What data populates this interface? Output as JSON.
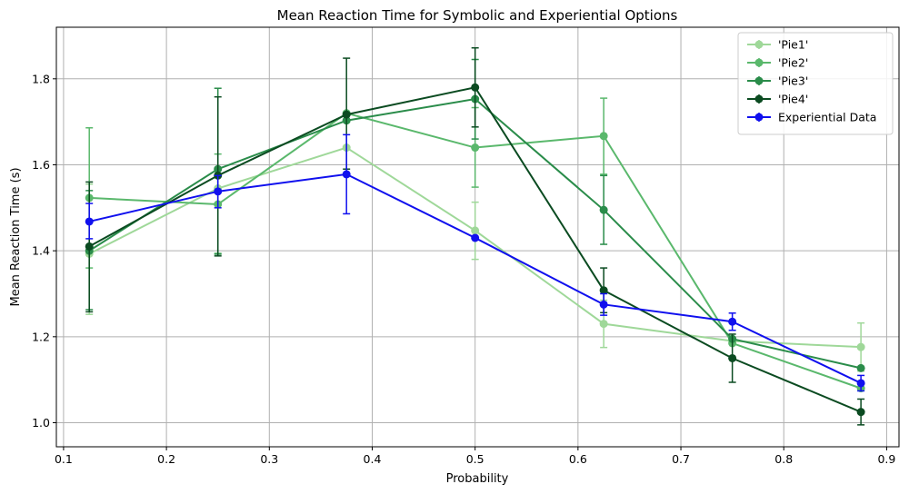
{
  "chart_data": {
    "type": "line",
    "title": "Mean Reaction Time for Symbolic and Experiential Options",
    "xlabel": "Probability",
    "ylabel": "Mean Reaction Time (s)",
    "xlim": [
      0.093,
      0.912
    ],
    "ylim": [
      0.944,
      1.92
    ],
    "xticks": [
      0.1,
      0.2,
      0.3,
      0.4,
      0.5,
      0.6,
      0.7,
      0.8,
      0.9
    ],
    "xtick_labels": [
      "0.1",
      "0.2",
      "0.3",
      "0.4",
      "0.5",
      "0.6",
      "0.7",
      "0.8",
      "0.9"
    ],
    "yticks": [
      1.0,
      1.2,
      1.4,
      1.6,
      1.8
    ],
    "ytick_labels": [
      "1.0",
      "1.2",
      "1.4",
      "1.6",
      "1.8"
    ],
    "grid": true,
    "legend_position": "top-right",
    "x": [
      0.125,
      0.25,
      0.375,
      0.5,
      0.625,
      0.75,
      0.875
    ],
    "series": [
      {
        "name": "'Pie1'",
        "color": "#9fd899",
        "values": [
          1.393,
          1.545,
          1.64,
          1.447,
          1.23,
          1.19,
          1.176
        ],
        "err_low": [
          1.252,
          null,
          null,
          1.38,
          1.175,
          null,
          1.12
        ],
        "err_high": [
          1.555,
          null,
          null,
          1.513,
          1.285,
          null,
          1.232
        ]
      },
      {
        "name": "'Pie2'",
        "color": "#5ab86c",
        "values": [
          1.523,
          1.508,
          1.72,
          1.64,
          1.667,
          1.185,
          1.08
        ],
        "err_low": [
          1.36,
          1.394,
          null,
          1.548,
          1.578,
          null,
          null
        ],
        "err_high": [
          1.686,
          1.625,
          null,
          1.733,
          1.755,
          null,
          null
        ]
      },
      {
        "name": "'Pie3'",
        "color": "#2a8c4a",
        "values": [
          1.4,
          1.59,
          1.703,
          1.753,
          1.495,
          1.195,
          1.127
        ],
        "err_low": [
          1.263,
          1.392,
          null,
          1.66,
          1.415,
          null,
          null
        ],
        "err_high": [
          1.54,
          1.778,
          null,
          1.845,
          1.575,
          null,
          null
        ]
      },
      {
        "name": "'Pie4'",
        "color": "#0b4b21",
        "values": [
          1.41,
          1.575,
          1.717,
          1.78,
          1.308,
          1.15,
          1.025
        ],
        "err_low": [
          1.258,
          1.388,
          1.59,
          1.688,
          1.256,
          1.094,
          0.995
        ],
        "err_high": [
          1.56,
          1.758,
          1.848,
          1.872,
          1.36,
          1.206,
          1.055
        ]
      },
      {
        "name": "Experiential Data",
        "color": "#1010ee",
        "values": [
          1.468,
          1.538,
          1.578,
          1.43,
          1.275,
          1.235,
          1.092
        ],
        "err_low": [
          1.428,
          1.5,
          1.486,
          null,
          1.25,
          1.215,
          1.074
        ],
        "err_high": [
          1.51,
          1.575,
          1.67,
          null,
          1.3,
          1.255,
          1.11
        ]
      }
    ]
  }
}
